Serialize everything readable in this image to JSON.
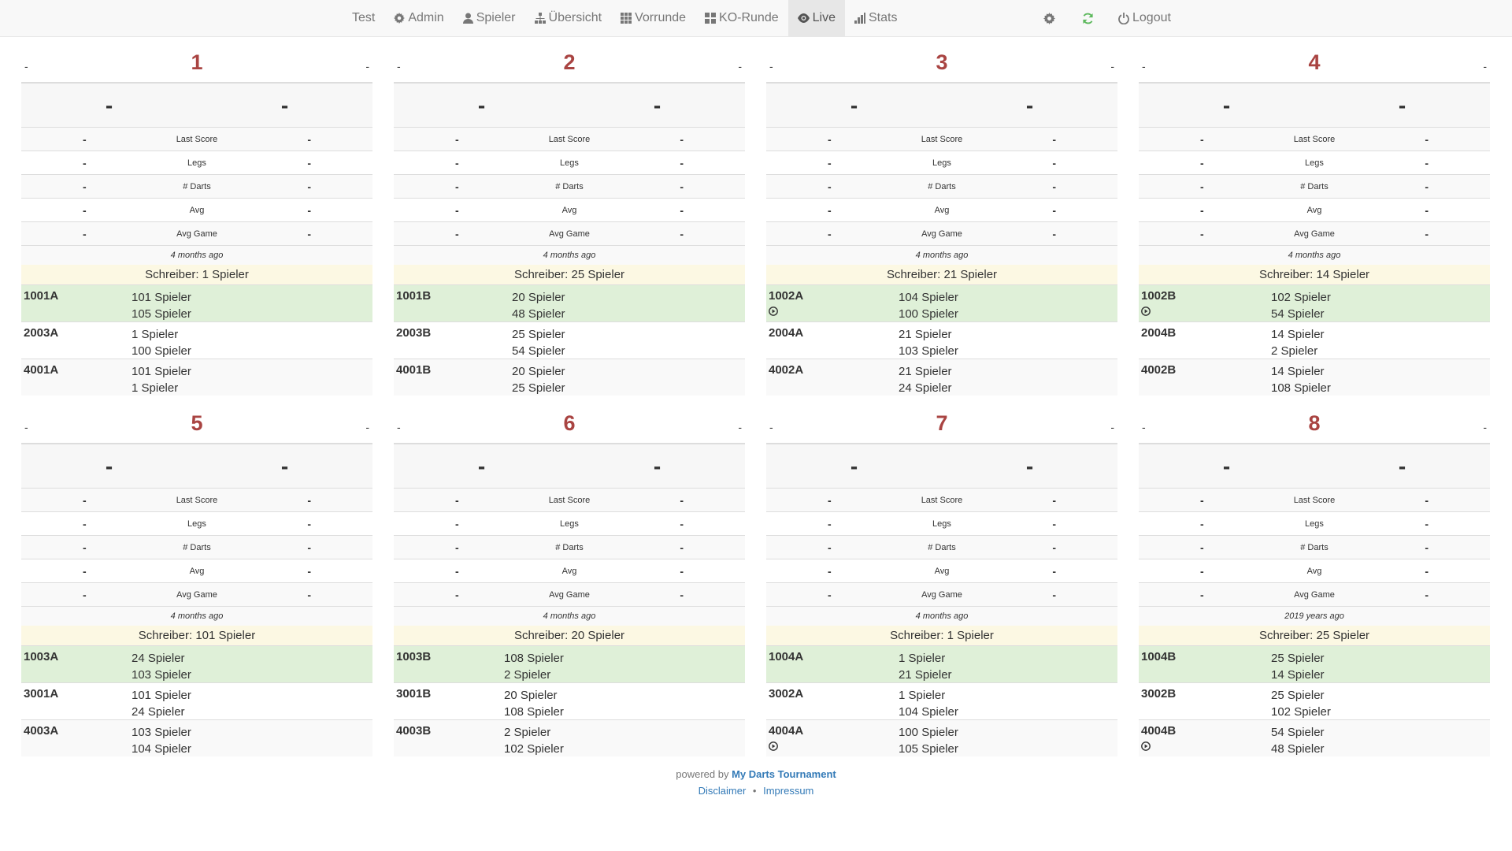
{
  "nav": {
    "brand": "Test",
    "items": [
      {
        "label": "Admin",
        "icon": "gear-icon"
      },
      {
        "label": "Spieler",
        "icon": "user-icon"
      },
      {
        "label": "Übersicht",
        "icon": "sitemap-icon"
      },
      {
        "label": "Vorrunde",
        "icon": "grid-icon"
      },
      {
        "label": "KO-Runde",
        "icon": "large-grid-icon"
      },
      {
        "label": "Live",
        "icon": "eye-icon",
        "active": true
      },
      {
        "label": "Stats",
        "icon": "stats-icon"
      }
    ],
    "logout_label": "Logout",
    "refresh_color": "#5cb85c",
    "accent_color": "#a94442"
  },
  "stat_labels": [
    "Last Score",
    "Legs",
    "# Darts",
    "Avg",
    "Avg Game"
  ],
  "placeholder": "-",
  "boards": [
    {
      "number": "1",
      "ago": "4 months ago",
      "schreiber": "Schreiber: 1 Spieler",
      "matches": [
        {
          "code": "1001A",
          "p1": "101 Spieler",
          "p2": "105 Spieler",
          "current": true,
          "playing": false
        },
        {
          "code": "2003A",
          "p1": "1 Spieler",
          "p2": "100 Spieler",
          "current": false,
          "playing": false
        },
        {
          "code": "4001A",
          "p1": "101 Spieler",
          "p2": "1 Spieler",
          "current": false,
          "playing": false
        }
      ]
    },
    {
      "number": "2",
      "ago": "4 months ago",
      "schreiber": "Schreiber: 25 Spieler",
      "matches": [
        {
          "code": "1001B",
          "p1": "20 Spieler",
          "p2": "48 Spieler",
          "current": true,
          "playing": false
        },
        {
          "code": "2003B",
          "p1": "25 Spieler",
          "p2": "54 Spieler",
          "current": false,
          "playing": false
        },
        {
          "code": "4001B",
          "p1": "20 Spieler",
          "p2": "25 Spieler",
          "current": false,
          "playing": false
        }
      ]
    },
    {
      "number": "3",
      "ago": "4 months ago",
      "schreiber": "Schreiber: 21 Spieler",
      "matches": [
        {
          "code": "1002A",
          "p1": "104 Spieler",
          "p2": "100 Spieler",
          "current": true,
          "playing": true
        },
        {
          "code": "2004A",
          "p1": "21 Spieler",
          "p2": "103 Spieler",
          "current": false,
          "playing": false
        },
        {
          "code": "4002A",
          "p1": "21 Spieler",
          "p2": "24 Spieler",
          "current": false,
          "playing": false
        }
      ]
    },
    {
      "number": "4",
      "ago": "4 months ago",
      "schreiber": "Schreiber: 14 Spieler",
      "matches": [
        {
          "code": "1002B",
          "p1": "102 Spieler",
          "p2": "54 Spieler",
          "current": true,
          "playing": true
        },
        {
          "code": "2004B",
          "p1": "14 Spieler",
          "p2": "2 Spieler",
          "current": false,
          "playing": false
        },
        {
          "code": "4002B",
          "p1": "14 Spieler",
          "p2": "108 Spieler",
          "current": false,
          "playing": false
        }
      ]
    },
    {
      "number": "5",
      "ago": "4 months ago",
      "schreiber": "Schreiber: 101 Spieler",
      "matches": [
        {
          "code": "1003A",
          "p1": "24 Spieler",
          "p2": "103 Spieler",
          "current": true,
          "playing": false
        },
        {
          "code": "3001A",
          "p1": "101 Spieler",
          "p2": "24 Spieler",
          "current": false,
          "playing": false
        },
        {
          "code": "4003A",
          "p1": "103 Spieler",
          "p2": "104 Spieler",
          "current": false,
          "playing": false
        }
      ]
    },
    {
      "number": "6",
      "ago": "4 months ago",
      "schreiber": "Schreiber: 20 Spieler",
      "matches": [
        {
          "code": "1003B",
          "p1": "108 Spieler",
          "p2": "2 Spieler",
          "current": true,
          "playing": false
        },
        {
          "code": "3001B",
          "p1": "20 Spieler",
          "p2": "108 Spieler",
          "current": false,
          "playing": false
        },
        {
          "code": "4003B",
          "p1": "2 Spieler",
          "p2": "102 Spieler",
          "current": false,
          "playing": false
        }
      ]
    },
    {
      "number": "7",
      "ago": "4 months ago",
      "schreiber": "Schreiber: 1 Spieler",
      "matches": [
        {
          "code": "1004A",
          "p1": "1 Spieler",
          "p2": "21 Spieler",
          "current": true,
          "playing": false
        },
        {
          "code": "3002A",
          "p1": "1 Spieler",
          "p2": "104 Spieler",
          "current": false,
          "playing": false
        },
        {
          "code": "4004A",
          "p1": "100 Spieler",
          "p2": "105 Spieler",
          "current": false,
          "playing": true
        }
      ]
    },
    {
      "number": "8",
      "ago": "2019 years ago",
      "schreiber": "Schreiber: 25 Spieler",
      "matches": [
        {
          "code": "1004B",
          "p1": "25 Spieler",
          "p2": "14 Spieler",
          "current": true,
          "playing": false
        },
        {
          "code": "3002B",
          "p1": "25 Spieler",
          "p2": "102 Spieler",
          "current": false,
          "playing": false
        },
        {
          "code": "4004B",
          "p1": "54 Spieler",
          "p2": "48 Spieler",
          "current": false,
          "playing": true
        }
      ]
    }
  ],
  "footer": {
    "powered_by": "powered by",
    "brand": "My Darts Tournament",
    "disclaimer": "Disclaimer",
    "separator": "•",
    "impressum": "Impressum"
  }
}
